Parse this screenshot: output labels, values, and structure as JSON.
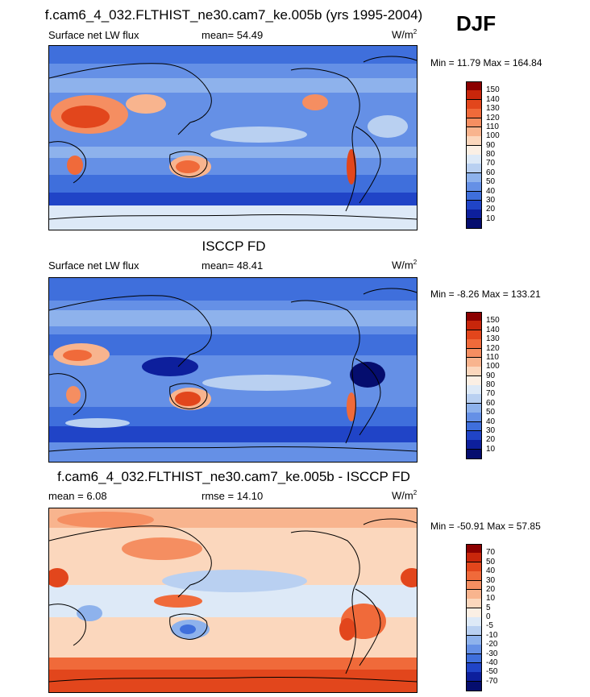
{
  "season": "DJF",
  "panels": [
    {
      "title": "f.cam6_4_032.FLTHIST_ne30.cam7_ke.005b (yrs 1995-2004)",
      "left_label": "Surface net LW flux",
      "mid_label": "mean=  54.49",
      "units": "W/m",
      "units_sup": "2",
      "minmax": "Min =  11.79 Max = 164.84"
    },
    {
      "title": "ISCCP FD",
      "left_label": "Surface net LW flux",
      "mid_label": "mean=  48.41",
      "units": "W/m",
      "units_sup": "2",
      "minmax": "Min =  -8.26 Max = 133.21"
    },
    {
      "title": "f.cam6_4_032.FLTHIST_ne30.cam7_ke.005b - ISCCP FD",
      "left_label": "mean =   6.08",
      "mid_label": "rmse =  14.10",
      "units": "W/m",
      "units_sup": "2",
      "minmax": "Min = -50.91 Max =  57.85"
    }
  ],
  "colorbars": [
    {
      "levels": [
        "150",
        "140",
        "130",
        "120",
        "110",
        "100",
        "90",
        "80",
        "70",
        "60",
        "50",
        "40",
        "30",
        "20",
        "10"
      ],
      "colors": [
        "#8b0000",
        "#c8260b",
        "#e2461c",
        "#f06a3a",
        "#f58e61",
        "#f8b48e",
        "#fbd7bd",
        "#fbefe4",
        "#dde9f7",
        "#b9d0f1",
        "#8eb2ec",
        "#6590e6",
        "#3f6fdc",
        "#2044c7",
        "#0d1f9c",
        "#050d6e"
      ]
    },
    {
      "levels": [
        "150",
        "140",
        "130",
        "120",
        "110",
        "100",
        "90",
        "80",
        "70",
        "60",
        "50",
        "40",
        "30",
        "20",
        "10"
      ],
      "colors": [
        "#8b0000",
        "#c8260b",
        "#e2461c",
        "#f06a3a",
        "#f58e61",
        "#f8b48e",
        "#fbd7bd",
        "#fbefe4",
        "#dde9f7",
        "#b9d0f1",
        "#8eb2ec",
        "#6590e6",
        "#3f6fdc",
        "#2044c7",
        "#0d1f9c",
        "#050d6e"
      ]
    },
    {
      "levels": [
        "70",
        "50",
        "40",
        "30",
        "20",
        "10",
        "5",
        "0",
        "-5",
        "-10",
        "-20",
        "-30",
        "-40",
        "-50",
        "-70"
      ],
      "colors": [
        "#8b0000",
        "#c8260b",
        "#e2461c",
        "#f06a3a",
        "#f58e61",
        "#f8b48e",
        "#fbd7bd",
        "#fbefe4",
        "#dde9f7",
        "#b9d0f1",
        "#8eb2ec",
        "#6590e6",
        "#3f6fdc",
        "#2044c7",
        "#0d1f9c",
        "#050d6e"
      ]
    }
  ],
  "chart_data": [
    {
      "type": "heatmap",
      "title": "f.cam6_4_032.FLTHIST_ne30.cam7_ke.005b (yrs 1995-2004)",
      "variable": "Surface net LW flux",
      "units": "W/m2",
      "mean": 54.49,
      "min": 11.79,
      "max": 164.84,
      "contour_levels": [
        10,
        20,
        30,
        40,
        50,
        60,
        70,
        80,
        90,
        100,
        110,
        120,
        130,
        140,
        150
      ]
    },
    {
      "type": "heatmap",
      "title": "ISCCP FD",
      "variable": "Surface net LW flux",
      "units": "W/m2",
      "mean": 48.41,
      "min": -8.26,
      "max": 133.21,
      "contour_levels": [
        10,
        20,
        30,
        40,
        50,
        60,
        70,
        80,
        90,
        100,
        110,
        120,
        130,
        140,
        150
      ]
    },
    {
      "type": "heatmap",
      "title": "f.cam6_4_032.FLTHIST_ne30.cam7_ke.005b - ISCCP FD",
      "units": "W/m2",
      "mean": 6.08,
      "rmse": 14.1,
      "min": -50.91,
      "max": 57.85,
      "contour_levels": [
        -70,
        -50,
        -40,
        -30,
        -20,
        -10,
        -5,
        0,
        5,
        10,
        20,
        30,
        40,
        50,
        70
      ]
    }
  ]
}
